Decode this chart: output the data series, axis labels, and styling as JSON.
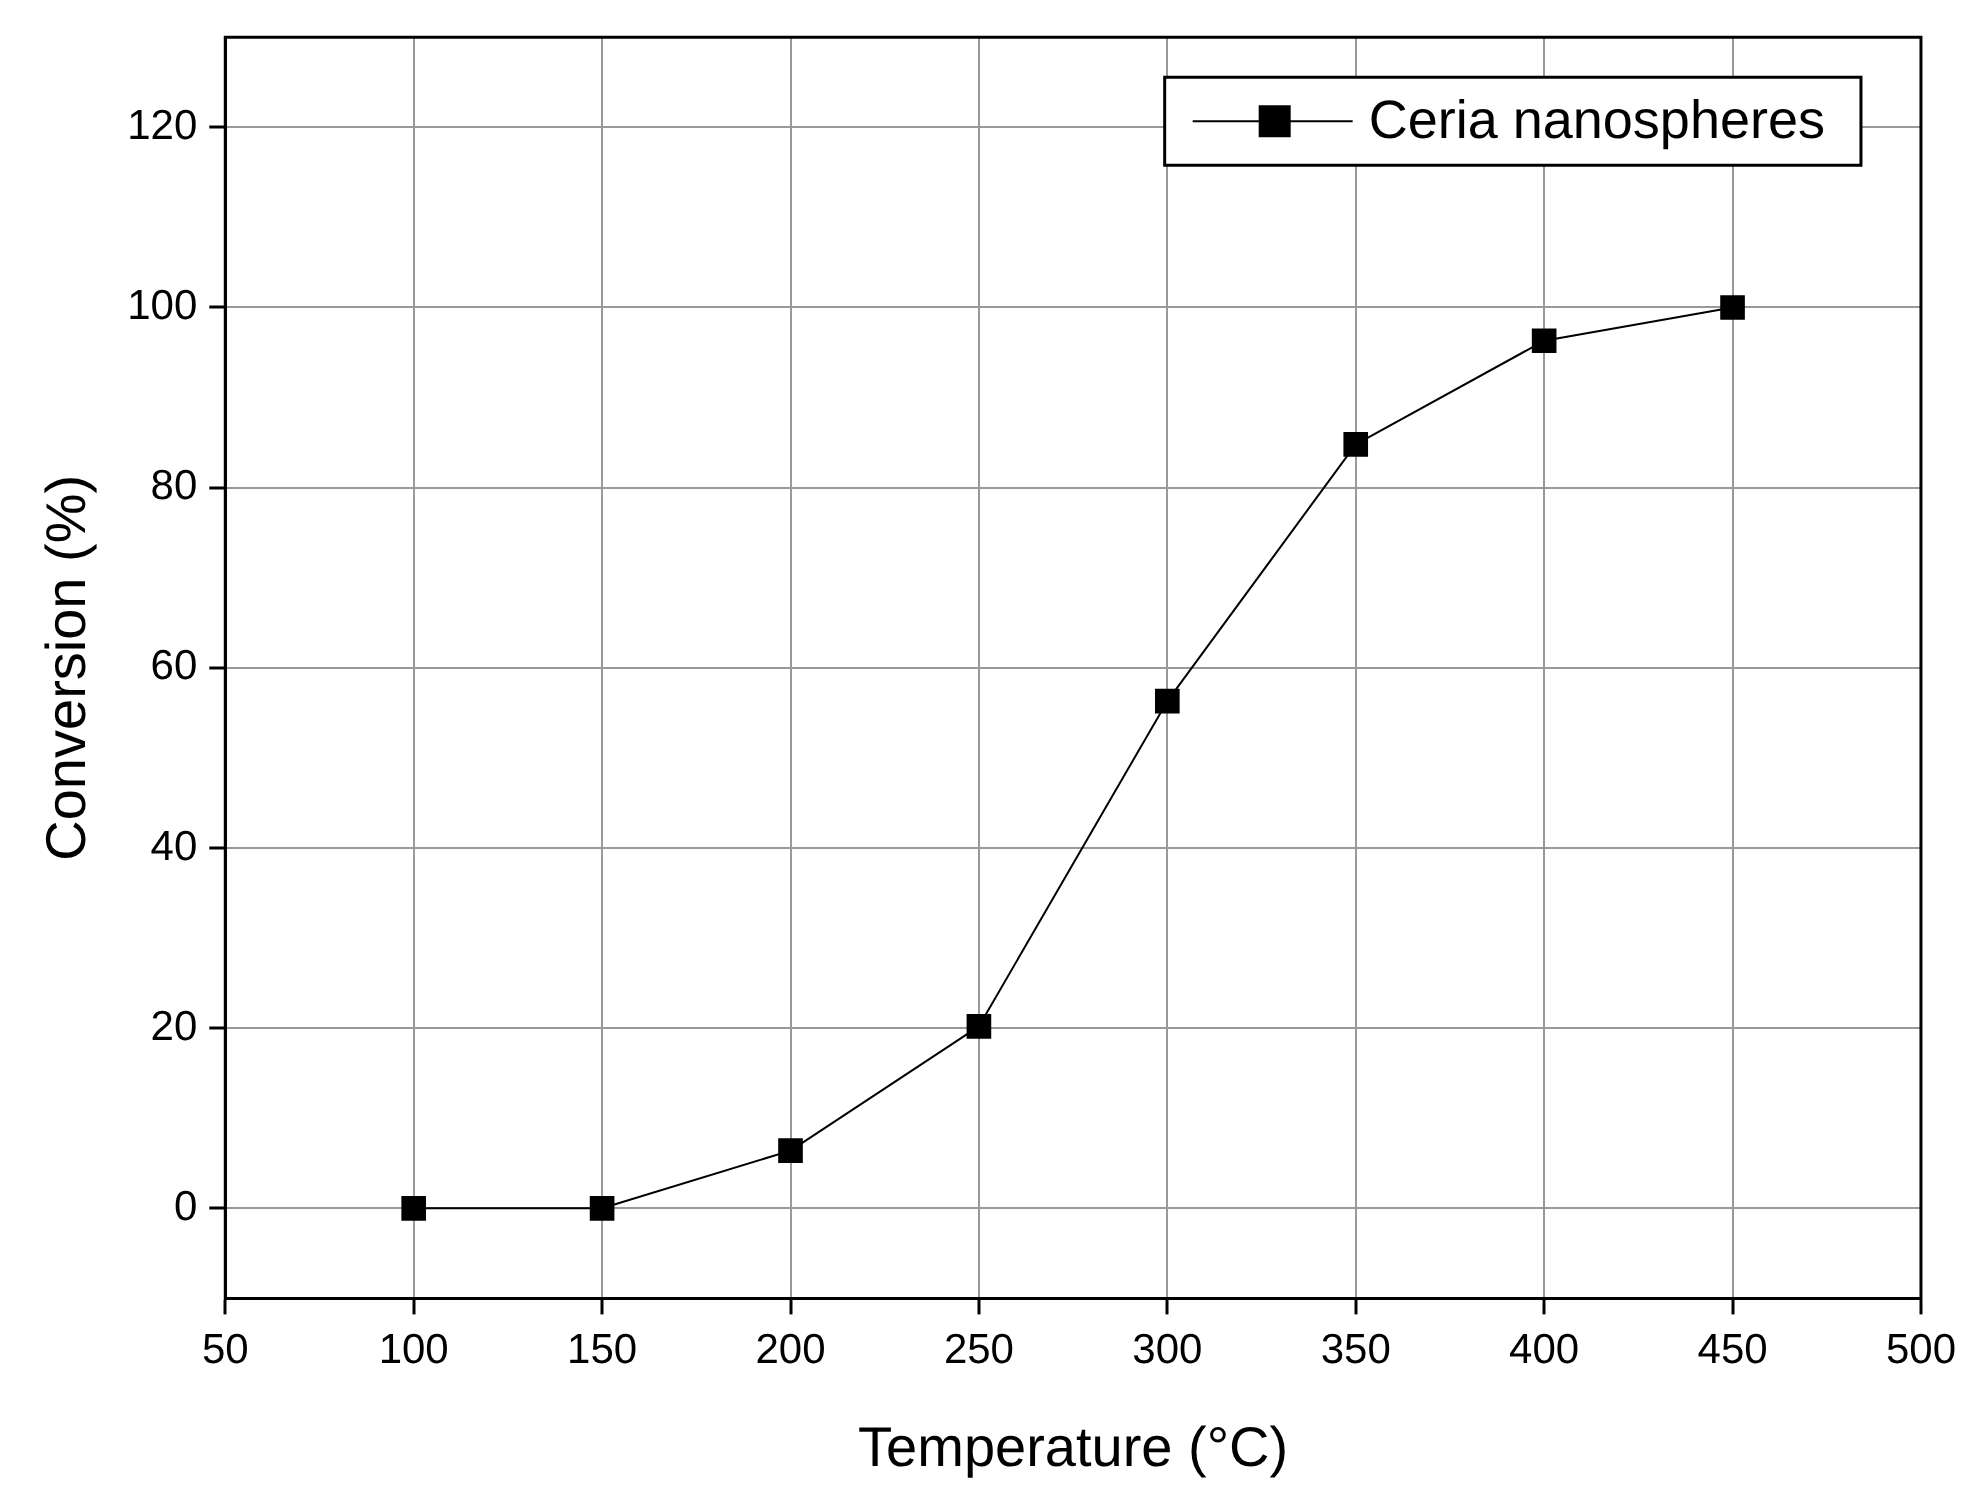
{
  "chart_data": {
    "type": "line",
    "xlabel": "Temperature (°C)",
    "ylabel": "Conversion (%)",
    "x": [
      100,
      150,
      200,
      250,
      300,
      350,
      400,
      450
    ],
    "series": [
      {
        "name": "Ceria nanospheres",
        "color": "#000000",
        "values": [
          0,
          0,
          6.4,
          20.2,
          56.3,
          84.8,
          96.3,
          100
        ]
      }
    ],
    "xlim": [
      50,
      500
    ],
    "xticks": [
      50,
      100,
      150,
      200,
      250,
      300,
      350,
      400,
      450,
      500
    ],
    "ylim": [
      -10,
      130
    ],
    "yticks": [
      0,
      20,
      40,
      60,
      80,
      100,
      120
    ],
    "grid": true,
    "legend": "top right",
    "marker": "square",
    "line_style": "solid"
  }
}
